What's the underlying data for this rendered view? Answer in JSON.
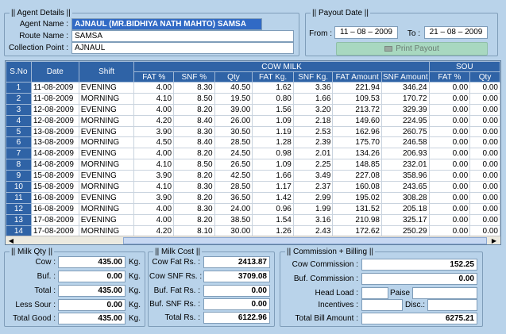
{
  "agent": {
    "legend": "|| Agent Details ||",
    "name_label": "Agent Name :",
    "name_value": "AJNAUL (MR.BIDHIYA NATH MAHTO) SAMSA",
    "route_label": "Route Name :",
    "route_value": "SAMSA",
    "point_label": "Collection Point :",
    "point_value": "AJNAUL"
  },
  "payout": {
    "legend": "|| Payout Date ||",
    "from_label": "From :",
    "from_value": "11 – 08 – 2009",
    "to_label": "To :",
    "to_value": "21 – 08 – 2009",
    "print_label": "Print Payout"
  },
  "grid": {
    "group_cow": "COW MILK",
    "group_sour": "SOU",
    "headers": [
      "S.No",
      "Date",
      "Shift",
      "FAT %",
      "SNF %",
      "Qty",
      "FAT Kg.",
      "SNF Kg.",
      "FAT Amount",
      "SNF Amount",
      "FAT %",
      "Qty"
    ],
    "rows": [
      [
        "1",
        "11-08-2009",
        "EVENING",
        "4.00",
        "8.30",
        "40.50",
        "1.62",
        "3.36",
        "221.94",
        "346.24",
        "0.00",
        "0.00"
      ],
      [
        "2",
        "11-08-2009",
        "MORNING",
        "4.10",
        "8.50",
        "19.50",
        "0.80",
        "1.66",
        "109.53",
        "170.72",
        "0.00",
        "0.00"
      ],
      [
        "3",
        "12-08-2009",
        "EVENING",
        "4.00",
        "8.20",
        "39.00",
        "1.56",
        "3.20",
        "213.72",
        "329.39",
        "0.00",
        "0.00"
      ],
      [
        "4",
        "12-08-2009",
        "MORNING",
        "4.20",
        "8.40",
        "26.00",
        "1.09",
        "2.18",
        "149.60",
        "224.95",
        "0.00",
        "0.00"
      ],
      [
        "5",
        "13-08-2009",
        "EVENING",
        "3.90",
        "8.30",
        "30.50",
        "1.19",
        "2.53",
        "162.96",
        "260.75",
        "0.00",
        "0.00"
      ],
      [
        "6",
        "13-08-2009",
        "MORNING",
        "4.50",
        "8.40",
        "28.50",
        "1.28",
        "2.39",
        "175.70",
        "246.58",
        "0.00",
        "0.00"
      ],
      [
        "7",
        "14-08-2009",
        "EVENING",
        "4.00",
        "8.20",
        "24.50",
        "0.98",
        "2.01",
        "134.26",
        "206.93",
        "0.00",
        "0.00"
      ],
      [
        "8",
        "14-08-2009",
        "MORNING",
        "4.10",
        "8.50",
        "26.50",
        "1.09",
        "2.25",
        "148.85",
        "232.01",
        "0.00",
        "0.00"
      ],
      [
        "9",
        "15-08-2009",
        "EVENING",
        "3.90",
        "8.20",
        "42.50",
        "1.66",
        "3.49",
        "227.08",
        "358.96",
        "0.00",
        "0.00"
      ],
      [
        "10",
        "15-08-2009",
        "MORNING",
        "4.10",
        "8.30",
        "28.50",
        "1.17",
        "2.37",
        "160.08",
        "243.65",
        "0.00",
        "0.00"
      ],
      [
        "11",
        "16-08-2009",
        "EVENING",
        "3.90",
        "8.20",
        "36.50",
        "1.42",
        "2.99",
        "195.02",
        "308.28",
        "0.00",
        "0.00"
      ],
      [
        "12",
        "16-08-2009",
        "MORNING",
        "4.00",
        "8.30",
        "24.00",
        "0.96",
        "1.99",
        "131.52",
        "205.18",
        "0.00",
        "0.00"
      ],
      [
        "13",
        "17-08-2009",
        "EVENING",
        "4.00",
        "8.20",
        "38.50",
        "1.54",
        "3.16",
        "210.98",
        "325.17",
        "0.00",
        "0.00"
      ],
      [
        "14",
        "17-08-2009",
        "MORNING",
        "4.20",
        "8.10",
        "30.00",
        "1.26",
        "2.43",
        "172.62",
        "250.29",
        "0.00",
        "0.00"
      ]
    ]
  },
  "milk_qty": {
    "legend": "|| Milk Qty ||",
    "unit": "Kg.",
    "items": [
      {
        "label": "Cow :",
        "value": "435.00"
      },
      {
        "label": "Buf. :",
        "value": "0.00"
      },
      {
        "label": "Total :",
        "value": "435.00"
      },
      {
        "label": "Less Sour :",
        "value": "0.00"
      },
      {
        "label": "Total Good :",
        "value": "435.00"
      }
    ]
  },
  "milk_cost": {
    "legend": "|| Milk Cost ||",
    "items": [
      {
        "label": "Cow Fat Rs. :",
        "value": "2413.87"
      },
      {
        "label": "Cow SNF Rs. :",
        "value": "3709.08"
      },
      {
        "label": "Buf. Fat Rs. :",
        "value": "0.00"
      },
      {
        "label": "Buf. SNF Rs. :",
        "value": "0.00"
      },
      {
        "label": "Total Rs. :",
        "value": "6122.96"
      }
    ]
  },
  "commission": {
    "legend": "|| Commission + Billing ||",
    "cow_label": "Cow Commission :",
    "cow_value": "152.25",
    "buf_label": "Buf. Commission :",
    "buf_value": "0.00",
    "head_label": "Head Load :",
    "paise_label": "Paise",
    "incentives_label": "Incentives :",
    "disc_label": "Disc.:",
    "total_label": "Total Bill Amount :",
    "total_value": "6275.21"
  }
}
